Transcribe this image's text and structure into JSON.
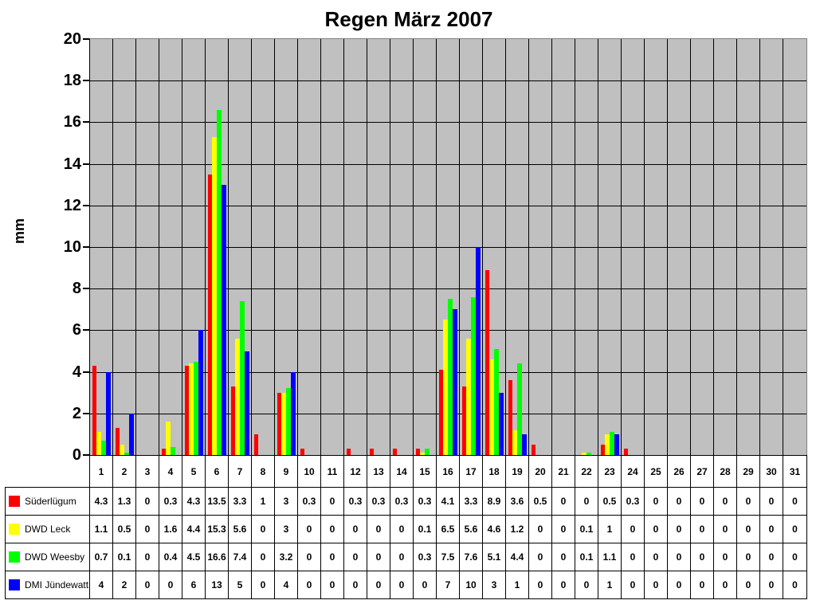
{
  "title": "Regen März 2007",
  "ylabel": "mm",
  "chart_data": {
    "type": "bar",
    "title": "Regen März 2007",
    "xlabel": "",
    "ylabel": "mm",
    "ylim": [
      0,
      20
    ],
    "ytick_step": 2,
    "ytick_labels": [
      "20",
      "18",
      "16",
      "14",
      "12",
      "10",
      "8",
      "6",
      "4",
      "2",
      "0"
    ],
    "grid": "both",
    "plot_bg": "#C0C0C0",
    "gridline_color": "#000000",
    "legend_position": "table-left",
    "categories": [
      "1",
      "2",
      "3",
      "4",
      "5",
      "6",
      "7",
      "8",
      "9",
      "10",
      "11",
      "12",
      "13",
      "14",
      "15",
      "16",
      "17",
      "18",
      "19",
      "20",
      "21",
      "22",
      "23",
      "24",
      "25",
      "26",
      "27",
      "28",
      "29",
      "30",
      "31"
    ],
    "series": [
      {
        "name": "Süderlügum",
        "color": "#FF0000",
        "values": [
          4.3,
          1.3,
          0,
          0.3,
          4.3,
          13.5,
          3.3,
          1,
          3,
          0.3,
          0,
          0.3,
          0.3,
          0.3,
          0.3,
          4.1,
          3.3,
          8.9,
          3.6,
          0.5,
          0,
          0,
          0.5,
          0.3,
          0,
          0,
          0,
          0,
          0,
          0,
          0
        ]
      },
      {
        "name": "DWD Leck",
        "color": "#FFFF00",
        "values": [
          1.1,
          0.5,
          0,
          1.6,
          4.4,
          15.3,
          5.6,
          0,
          3,
          0,
          0,
          0,
          0,
          0,
          0.1,
          6.5,
          5.6,
          4.6,
          1.2,
          0,
          0,
          0.1,
          1,
          0,
          0,
          0,
          0,
          0,
          0,
          0,
          0
        ]
      },
      {
        "name": "DWD Weesby",
        "color": "#00FF00",
        "values": [
          0.7,
          0.1,
          0,
          0.4,
          4.5,
          16.6,
          7.4,
          0,
          3.2,
          0,
          0,
          0,
          0,
          0,
          0.3,
          7.5,
          7.6,
          5.1,
          4.4,
          0,
          0,
          0.1,
          1.1,
          0,
          0,
          0,
          0,
          0,
          0,
          0,
          0
        ]
      },
      {
        "name": "DMI Jündewatt",
        "color": "#0000FF",
        "values": [
          4,
          2,
          0,
          0,
          6,
          13,
          5,
          0,
          4,
          0,
          0,
          0,
          0,
          0,
          0,
          7,
          10,
          3,
          1,
          0,
          0,
          0,
          1,
          0,
          0,
          0,
          0,
          0,
          0,
          0,
          0
        ]
      }
    ]
  }
}
